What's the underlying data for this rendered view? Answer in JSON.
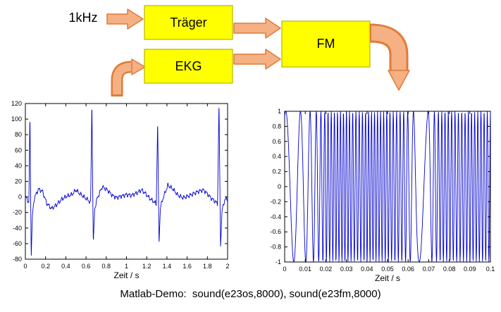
{
  "diagram": {
    "input_label": "1kHz",
    "boxes": [
      {
        "id": "traeger",
        "label": "Träger"
      },
      {
        "id": "ekg",
        "label": "EKG"
      },
      {
        "id": "fm",
        "label": "FM"
      }
    ],
    "colors": {
      "box_fill": "#ffff00",
      "box_border": "#b7b700",
      "arrow_fill": "#f5b183",
      "arrow_border": "#e07b39"
    }
  },
  "caption": "Matlab-Demo:  sound(e23os,8000), sound(e23fm,8000)",
  "chart_data": [
    {
      "type": "line",
      "name": "ekg",
      "title": "",
      "xlabel": "Zeit / s",
      "ylabel": "",
      "xlim": [
        0,
        2
      ],
      "ylim": [
        -80,
        120
      ],
      "xticks": [
        0,
        0.2,
        0.4,
        0.6,
        0.8,
        1,
        1.2,
        1.4,
        1.6,
        1.8,
        2
      ],
      "yticks": [
        -80,
        -60,
        -40,
        -20,
        0,
        20,
        40,
        60,
        80,
        100,
        120
      ],
      "grid": false,
      "line_color": "#0000d0",
      "keypoints": [
        [
          0,
          0
        ],
        [
          0.02,
          -3
        ],
        [
          0.035,
          -8
        ],
        [
          0.045,
          103
        ],
        [
          0.058,
          -76
        ],
        [
          0.07,
          -24
        ],
        [
          0.085,
          -4
        ],
        [
          0.1,
          2
        ],
        [
          0.13,
          10
        ],
        [
          0.17,
          7
        ],
        [
          0.21,
          -8
        ],
        [
          0.26,
          -15
        ],
        [
          0.31,
          -10
        ],
        [
          0.36,
          -3
        ],
        [
          0.41,
          1
        ],
        [
          0.46,
          3
        ],
        [
          0.5,
          9
        ],
        [
          0.54,
          4
        ],
        [
          0.58,
          0
        ],
        [
          0.62,
          -4
        ],
        [
          0.645,
          -8
        ],
        [
          0.658,
          120
        ],
        [
          0.672,
          -60
        ],
        [
          0.685,
          -16
        ],
        [
          0.71,
          -2
        ],
        [
          0.76,
          13
        ],
        [
          0.81,
          9
        ],
        [
          0.86,
          2
        ],
        [
          0.9,
          -1
        ],
        [
          0.95,
          1
        ],
        [
          1.0,
          3
        ],
        [
          1.05,
          2
        ],
        [
          1.1,
          5
        ],
        [
          1.15,
          9
        ],
        [
          1.19,
          4
        ],
        [
          1.23,
          -2
        ],
        [
          1.27,
          -6
        ],
        [
          1.295,
          -9
        ],
        [
          1.308,
          97
        ],
        [
          1.322,
          -59
        ],
        [
          1.335,
          -14
        ],
        [
          1.36,
          -2
        ],
        [
          1.41,
          15
        ],
        [
          1.46,
          10
        ],
        [
          1.51,
          2
        ],
        [
          1.56,
          -1
        ],
        [
          1.61,
          1
        ],
        [
          1.66,
          4
        ],
        [
          1.71,
          7
        ],
        [
          1.76,
          9
        ],
        [
          1.8,
          4
        ],
        [
          1.84,
          -2
        ],
        [
          1.88,
          -6
        ],
        [
          1.9,
          -9
        ],
        [
          1.915,
          120
        ],
        [
          1.93,
          -62
        ],
        [
          1.945,
          -18
        ],
        [
          1.97,
          -4
        ],
        [
          2.0,
          -2
        ]
      ]
    },
    {
      "type": "line",
      "name": "fm",
      "title": "",
      "xlabel": "Zeit / s",
      "ylabel": "",
      "xlim": [
        0,
        0.1
      ],
      "ylim": [
        -1,
        1
      ],
      "xticks": [
        0,
        0.01,
        0.02,
        0.03,
        0.04,
        0.05,
        0.06,
        0.07,
        0.08,
        0.09,
        0.1
      ],
      "yticks": [
        -1,
        -0.8,
        -0.6,
        -0.4,
        -0.2,
        0,
        0.2,
        0.4,
        0.6,
        0.8,
        1
      ],
      "grid": false,
      "line_color": "#0000d0",
      "synthesis": {
        "sample_rate_hz": 8000,
        "amplitude": 1,
        "initial_phase": 1.2,
        "freq_profile": [
          [
            0,
            110
          ],
          [
            0.004,
            140
          ],
          [
            0.008,
            170
          ],
          [
            0.012,
            260
          ],
          [
            0.016,
            420
          ],
          [
            0.02,
            620
          ],
          [
            0.028,
            700
          ],
          [
            0.035,
            620
          ],
          [
            0.042,
            700
          ],
          [
            0.05,
            650
          ],
          [
            0.058,
            560
          ],
          [
            0.062,
            300
          ],
          [
            0.065,
            110
          ],
          [
            0.069,
            110
          ],
          [
            0.072,
            420
          ],
          [
            0.076,
            640
          ],
          [
            0.084,
            600
          ],
          [
            0.092,
            660
          ],
          [
            0.1,
            640
          ]
        ]
      }
    }
  ]
}
